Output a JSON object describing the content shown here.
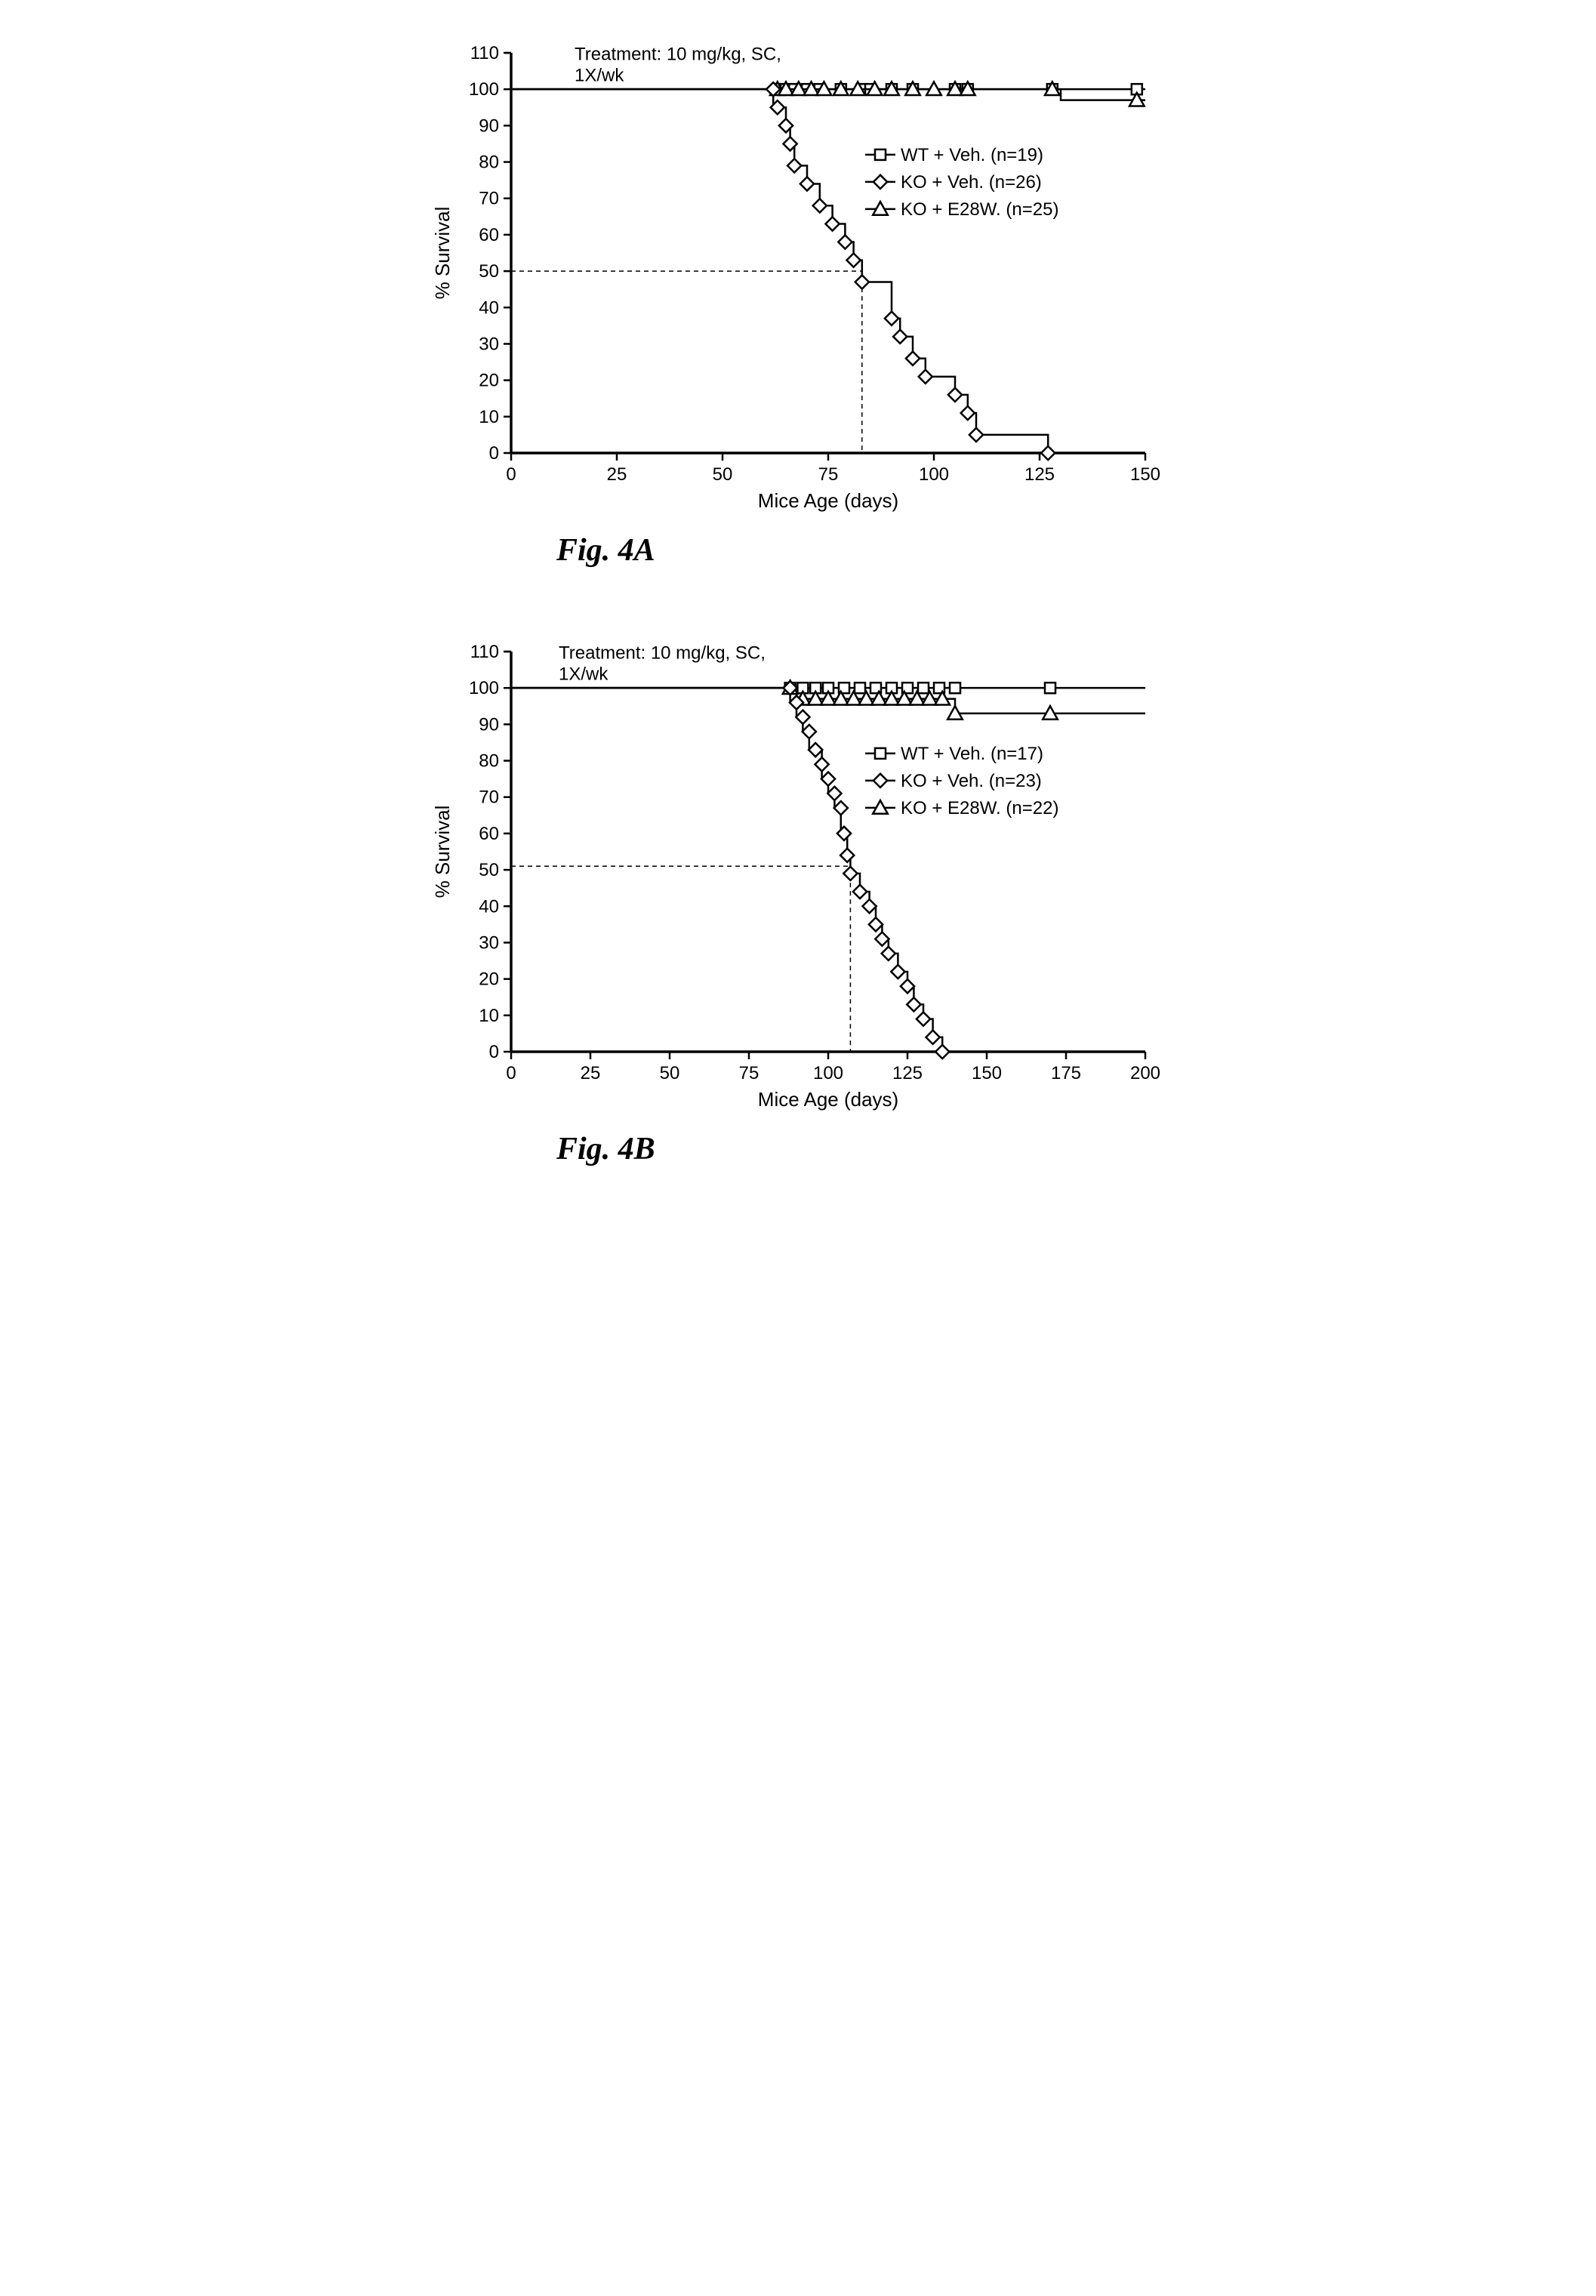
{
  "figA": {
    "label": "Fig. 4A",
    "treatment_line1": "Treatment: 10 mg/kg, SC,",
    "treatment_line2": "1X/wk",
    "xlabel": "Mice Age (days)",
    "ylabel": "% Survival",
    "xlim": [
      0,
      150
    ],
    "ylim": [
      0,
      110
    ],
    "xticks": [
      0,
      25,
      50,
      75,
      100,
      125,
      150
    ],
    "yticks": [
      0,
      10,
      20,
      30,
      40,
      50,
      60,
      70,
      80,
      90,
      100,
      110
    ],
    "median_x": 83,
    "median_y": 50,
    "legend": [
      {
        "marker": "square",
        "label": "WT + Veh. (n=19)"
      },
      {
        "marker": "diamond",
        "label": "KO + Veh. (n=26)"
      },
      {
        "marker": "triangle",
        "label": "KO + E28W. (n=25)"
      }
    ],
    "series": {
      "wt": {
        "marker": "square",
        "step": [
          [
            0,
            100
          ],
          [
            150,
            100
          ]
        ],
        "points": [
          [
            63,
            100
          ],
          [
            65,
            100
          ],
          [
            67,
            100
          ],
          [
            70,
            100
          ],
          [
            73,
            100
          ],
          [
            78,
            100
          ],
          [
            83,
            100
          ],
          [
            85,
            100
          ],
          [
            90,
            100
          ],
          [
            95,
            100
          ],
          [
            105,
            100
          ],
          [
            108,
            100
          ],
          [
            128,
            100
          ],
          [
            148,
            100
          ]
        ]
      },
      "ko_e28w": {
        "marker": "triangle",
        "step": [
          [
            0,
            100
          ],
          [
            130,
            100
          ],
          [
            130,
            97
          ],
          [
            150,
            97
          ]
        ],
        "points": [
          [
            63,
            100
          ],
          [
            65,
            100
          ],
          [
            68,
            100
          ],
          [
            71,
            100
          ],
          [
            74,
            100
          ],
          [
            78,
            100
          ],
          [
            82,
            100
          ],
          [
            86,
            100
          ],
          [
            90,
            100
          ],
          [
            95,
            100
          ],
          [
            100,
            100
          ],
          [
            105,
            100
          ],
          [
            108,
            100
          ],
          [
            128,
            100
          ],
          [
            148,
            97
          ]
        ]
      },
      "ko_veh": {
        "marker": "diamond",
        "step": [
          [
            0,
            100
          ],
          [
            62,
            100
          ],
          [
            62,
            95
          ],
          [
            65,
            95
          ],
          [
            65,
            90
          ],
          [
            66,
            90
          ],
          [
            66,
            85
          ],
          [
            67,
            85
          ],
          [
            67,
            79
          ],
          [
            70,
            79
          ],
          [
            70,
            74
          ],
          [
            73,
            74
          ],
          [
            73,
            68
          ],
          [
            76,
            68
          ],
          [
            76,
            63
          ],
          [
            79,
            63
          ],
          [
            79,
            58
          ],
          [
            81,
            58
          ],
          [
            81,
            53
          ],
          [
            83,
            53
          ],
          [
            83,
            47
          ],
          [
            90,
            47
          ],
          [
            90,
            37
          ],
          [
            92,
            37
          ],
          [
            92,
            32
          ],
          [
            95,
            32
          ],
          [
            95,
            26
          ],
          [
            98,
            26
          ],
          [
            98,
            21
          ],
          [
            105,
            21
          ],
          [
            105,
            16
          ],
          [
            108,
            16
          ],
          [
            108,
            11
          ],
          [
            110,
            11
          ],
          [
            110,
            5
          ],
          [
            127,
            5
          ],
          [
            127,
            0
          ],
          [
            150,
            0
          ]
        ],
        "points": [
          [
            62,
            100
          ],
          [
            63,
            95
          ],
          [
            65,
            90
          ],
          [
            66,
            85
          ],
          [
            67,
            79
          ],
          [
            70,
            74
          ],
          [
            73,
            68
          ],
          [
            76,
            63
          ],
          [
            79,
            58
          ],
          [
            81,
            53
          ],
          [
            83,
            47
          ],
          [
            90,
            37
          ],
          [
            92,
            32
          ],
          [
            95,
            26
          ],
          [
            98,
            21
          ],
          [
            105,
            16
          ],
          [
            108,
            11
          ],
          [
            110,
            5
          ],
          [
            127,
            0
          ]
        ]
      }
    },
    "colors": {
      "line": "#000000",
      "bg": "#ffffff",
      "dash": "#000000"
    },
    "stroke_width": 2.5,
    "marker_size": 7,
    "axis_fontsize": 26,
    "tick_fontsize": 24,
    "treatment_fontsize": 24,
    "legend_fontsize": 24
  },
  "figB": {
    "label": "Fig. 4B",
    "treatment_line1": "Treatment: 10 mg/kg, SC,",
    "treatment_line2": "1X/wk",
    "xlabel": "Mice Age (days)",
    "ylabel": "% Survival",
    "xlim": [
      0,
      200
    ],
    "ylim": [
      0,
      110
    ],
    "xticks": [
      0,
      25,
      50,
      75,
      100,
      125,
      150,
      175,
      200
    ],
    "yticks": [
      0,
      10,
      20,
      30,
      40,
      50,
      60,
      70,
      80,
      90,
      100,
      110
    ],
    "median_x": 107,
    "median_y": 51,
    "legend": [
      {
        "marker": "square",
        "label": "WT + Veh. (n=17)"
      },
      {
        "marker": "diamond",
        "label": "KO + Veh. (n=23)"
      },
      {
        "marker": "triangle",
        "label": "KO + E28W. (n=22)"
      }
    ],
    "series": {
      "wt": {
        "marker": "square",
        "step": [
          [
            0,
            100
          ],
          [
            200,
            100
          ]
        ],
        "points": [
          [
            88,
            100
          ],
          [
            92,
            100
          ],
          [
            96,
            100
          ],
          [
            100,
            100
          ],
          [
            105,
            100
          ],
          [
            110,
            100
          ],
          [
            115,
            100
          ],
          [
            120,
            100
          ],
          [
            125,
            100
          ],
          [
            130,
            100
          ],
          [
            135,
            100
          ],
          [
            140,
            100
          ],
          [
            170,
            100
          ]
        ]
      },
      "ko_e28w": {
        "marker": "triangle",
        "step": [
          [
            0,
            100
          ],
          [
            90,
            100
          ],
          [
            90,
            97
          ],
          [
            140,
            97
          ],
          [
            140,
            93
          ],
          [
            200,
            93
          ]
        ],
        "points": [
          [
            88,
            100
          ],
          [
            92,
            97
          ],
          [
            96,
            97
          ],
          [
            100,
            97
          ],
          [
            104,
            97
          ],
          [
            108,
            97
          ],
          [
            112,
            97
          ],
          [
            116,
            97
          ],
          [
            120,
            97
          ],
          [
            124,
            97
          ],
          [
            128,
            97
          ],
          [
            132,
            97
          ],
          [
            136,
            97
          ],
          [
            140,
            93
          ],
          [
            170,
            93
          ]
        ]
      },
      "ko_veh": {
        "marker": "diamond",
        "step": [
          [
            0,
            100
          ],
          [
            88,
            100
          ],
          [
            88,
            96
          ],
          [
            90,
            96
          ],
          [
            90,
            92
          ],
          [
            92,
            92
          ],
          [
            92,
            88
          ],
          [
            94,
            88
          ],
          [
            94,
            83
          ],
          [
            98,
            83
          ],
          [
            98,
            75
          ],
          [
            100,
            75
          ],
          [
            100,
            71
          ],
          [
            102,
            71
          ],
          [
            102,
            67
          ],
          [
            104,
            67
          ],
          [
            104,
            60
          ],
          [
            106,
            60
          ],
          [
            106,
            54
          ],
          [
            107,
            54
          ],
          [
            107,
            49
          ],
          [
            110,
            49
          ],
          [
            110,
            44
          ],
          [
            113,
            44
          ],
          [
            113,
            40
          ],
          [
            115,
            40
          ],
          [
            115,
            35
          ],
          [
            117,
            35
          ],
          [
            117,
            31
          ],
          [
            119,
            31
          ],
          [
            119,
            27
          ],
          [
            122,
            27
          ],
          [
            122,
            22
          ],
          [
            125,
            22
          ],
          [
            125,
            18
          ],
          [
            127,
            18
          ],
          [
            127,
            13
          ],
          [
            130,
            13
          ],
          [
            130,
            9
          ],
          [
            133,
            9
          ],
          [
            133,
            4
          ],
          [
            136,
            4
          ],
          [
            136,
            0
          ],
          [
            200,
            0
          ]
        ],
        "points": [
          [
            88,
            100
          ],
          [
            90,
            96
          ],
          [
            92,
            92
          ],
          [
            94,
            88
          ],
          [
            96,
            83
          ],
          [
            98,
            79
          ],
          [
            100,
            75
          ],
          [
            102,
            71
          ],
          [
            104,
            67
          ],
          [
            105,
            60
          ],
          [
            106,
            54
          ],
          [
            107,
            49
          ],
          [
            110,
            44
          ],
          [
            113,
            40
          ],
          [
            115,
            35
          ],
          [
            117,
            31
          ],
          [
            119,
            27
          ],
          [
            122,
            22
          ],
          [
            125,
            18
          ],
          [
            127,
            13
          ],
          [
            130,
            9
          ],
          [
            133,
            4
          ],
          [
            136,
            0
          ]
        ]
      }
    },
    "colors": {
      "line": "#000000",
      "bg": "#ffffff",
      "dash": "#000000"
    },
    "stroke_width": 2.5,
    "marker_size": 7,
    "axis_fontsize": 26,
    "tick_fontsize": 24,
    "treatment_fontsize": 24,
    "legend_fontsize": 24
  }
}
